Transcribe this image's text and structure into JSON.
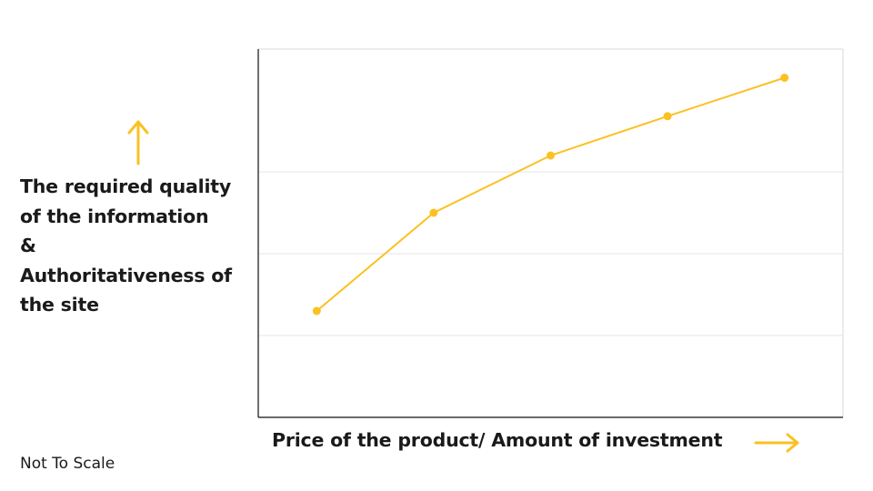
{
  "chart_data": {
    "type": "line",
    "title": "",
    "xlabel": "Price of the product/ Amount of investment",
    "ylabel_lines": [
      "The required quality",
      "of the information",
      "&",
      "Authoritativeness of",
      "the site"
    ],
    "note": "Not To Scale",
    "series": [
      {
        "color": "#FBC123",
        "x": [
          1,
          2,
          3,
          4,
          5
        ],
        "y": [
          1.3,
          2.5,
          3.2,
          3.68,
          4.15
        ]
      }
    ],
    "xlim": [
      0.5,
      5.5
    ],
    "ylim": [
      0,
      4.5
    ],
    "y_gridlines": [
      1.0,
      2.0,
      3.0
    ],
    "grid": true,
    "axis_arrows": {
      "x": "right-arrow-icon",
      "y": "up-arrow-icon",
      "color": "#FBC123"
    },
    "axis_frame": "left and bottom black axes, light grey top and right border"
  }
}
